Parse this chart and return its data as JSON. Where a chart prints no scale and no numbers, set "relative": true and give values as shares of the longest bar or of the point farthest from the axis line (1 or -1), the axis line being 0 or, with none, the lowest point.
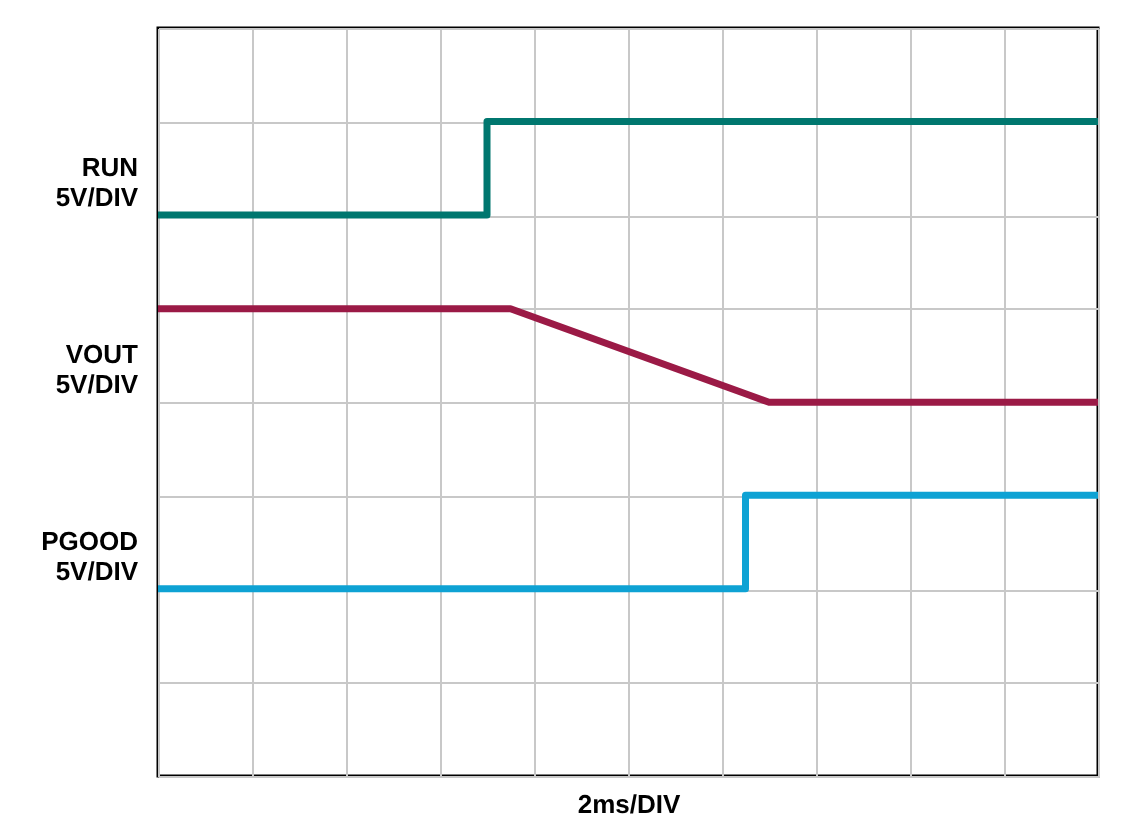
{
  "chart_data": {
    "type": "line",
    "relative": true,
    "xlabel": "2ms/DIV",
    "grid": true,
    "tick_labels": false,
    "categories": [
      null,
      null,
      null,
      null,
      null,
      null,
      null,
      null,
      null,
      null,
      null,
      null,
      null,
      null,
      null,
      null,
      null,
      null,
      null,
      null,
      null,
      null,
      null,
      null,
      null,
      null,
      null,
      null,
      null,
      null,
      null,
      null,
      null,
      null,
      null,
      null,
      null,
      null,
      null,
      null,
      null
    ],
    "series": [
      {
        "name": "RUN 5V/DIV",
        "type": "step",
        "color": "#00776f",
        "values": [
          0.857,
          0.857,
          0.857,
          0.857,
          0.857,
          0.857,
          0.857,
          0.857,
          0.857,
          0.857,
          0.857,
          0.857,
          0.857,
          0.857,
          1,
          1,
          1,
          1,
          1,
          1,
          1,
          1,
          1,
          1,
          1,
          1,
          1,
          1,
          1,
          1,
          1,
          1,
          1,
          1,
          1,
          1,
          1,
          1,
          1,
          1,
          1
        ]
      },
      {
        "name": "VOUT 5V/DIV",
        "color": "#9b1a46",
        "values": [
          0.714,
          0.714,
          0.714,
          0.714,
          0.714,
          0.714,
          0.714,
          0.714,
          0.714,
          0.714,
          0.714,
          0.714,
          0.714,
          0.714,
          0.714,
          0.714,
          0.701,
          0.688,
          0.675,
          0.662,
          0.649,
          0.636,
          0.623,
          0.61,
          0.597,
          0.584,
          0.571,
          0.571,
          0.571,
          0.571,
          0.571,
          0.571,
          0.571,
          0.571,
          0.571,
          0.571,
          0.571,
          0.571,
          0.571,
          0.571,
          0.571
        ]
      },
      {
        "name": "PGOOD 5V/DIV",
        "type": "step",
        "color": "#0ea2d4",
        "values": [
          0.286,
          0.286,
          0.286,
          0.286,
          0.286,
          0.286,
          0.286,
          0.286,
          0.286,
          0.286,
          0.286,
          0.286,
          0.286,
          0.286,
          0.286,
          0.286,
          0.286,
          0.286,
          0.286,
          0.286,
          0.286,
          0.286,
          0.286,
          0.286,
          0.286,
          0.429,
          0.429,
          0.429,
          0.429,
          0.429,
          0.429,
          0.429,
          0.429,
          0.429,
          0.429,
          0.429,
          0.429,
          0.429,
          0.429,
          0.429,
          0.429
        ]
      }
    ]
  }
}
